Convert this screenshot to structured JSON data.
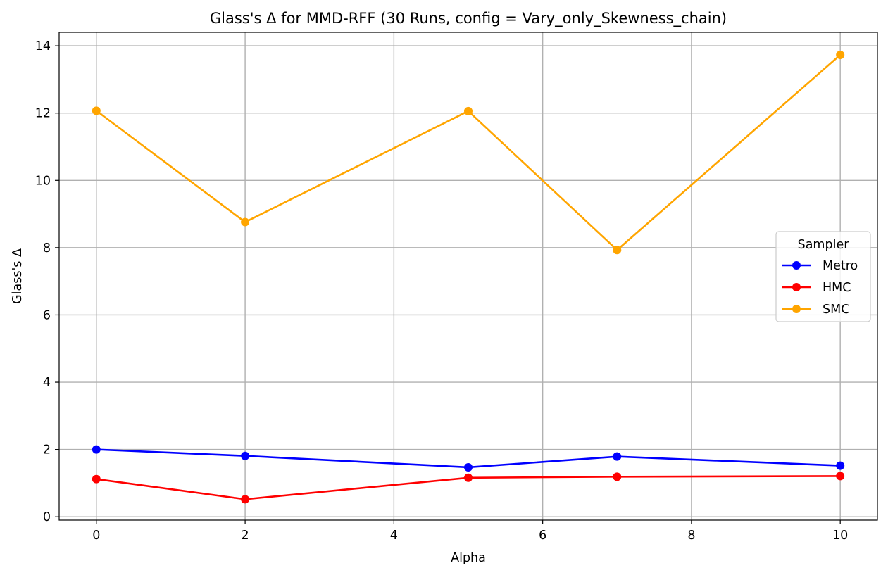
{
  "chart_data": {
    "type": "line",
    "title": "Glass's Δ for MMD-RFF (30 Runs, config = Vary_only_Skewness_chain)",
    "xlabel": "Alpha",
    "ylabel": "Glass's Δ",
    "x": [
      0,
      2,
      5,
      7,
      10
    ],
    "xlim": [
      -0.5,
      10.5
    ],
    "ylim": [
      -0.1,
      14.4
    ],
    "xticks": [
      0,
      2,
      4,
      6,
      8,
      10
    ],
    "yticks": [
      0,
      2,
      4,
      6,
      8,
      10,
      12,
      14
    ],
    "grid": true,
    "legend_title": "Sampler",
    "legend_placement": "center-right",
    "series": [
      {
        "name": "Metro",
        "color": "#0000ff",
        "values": [
          2.0,
          1.81,
          1.47,
          1.79,
          1.52
        ]
      },
      {
        "name": "HMC",
        "color": "#ff0000",
        "values": [
          1.12,
          0.52,
          1.16,
          1.19,
          1.21
        ]
      },
      {
        "name": "SMC",
        "color": "#ffa500",
        "values": [
          12.07,
          8.76,
          12.06,
          7.93,
          13.73
        ]
      }
    ]
  }
}
